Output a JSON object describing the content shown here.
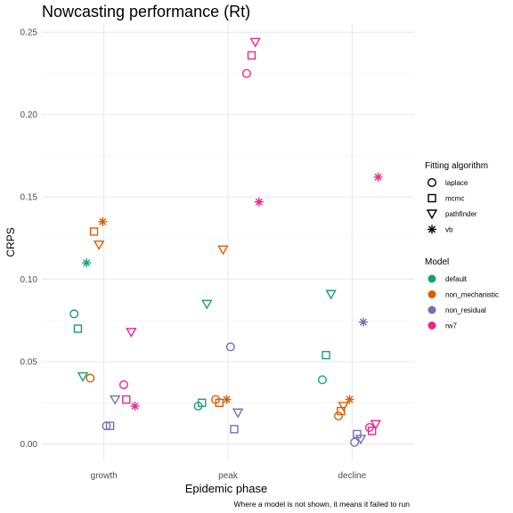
{
  "chart_data": {
    "type": "scatter",
    "title": "Nowcasting performance (Rt)",
    "xlabel": "Epidemic phase",
    "ylabel": "CRPS",
    "caption": "Where a model is not shown, it means it failed to run",
    "categories": [
      "growth",
      "peak",
      "decline"
    ],
    "ylim": [
      -0.01,
      0.255
    ],
    "yticks": [
      0.0,
      0.05,
      0.1,
      0.15,
      0.2,
      0.25
    ],
    "ytick_labels": [
      "0.00",
      "0.05",
      "0.10",
      "0.15",
      "0.20",
      "0.25"
    ],
    "grid": true,
    "legend_position": "right",
    "shape_legend": {
      "title": "Fitting algorithm",
      "entries": [
        {
          "label": "laplace",
          "shape": "circle"
        },
        {
          "label": "mcmc",
          "shape": "square"
        },
        {
          "label": "pathfinder",
          "shape": "triangle-down"
        },
        {
          "label": "vb",
          "shape": "asterisk"
        }
      ]
    },
    "color_legend": {
      "title": "Model",
      "entries": [
        {
          "label": "default",
          "color": "#1b9e77"
        },
        {
          "label": "non_mechanistic",
          "color": "#d95f02"
        },
        {
          "label": "non_residual",
          "color": "#7570b3"
        },
        {
          "label": "rw7",
          "color": "#e7298a"
        }
      ]
    },
    "points": [
      {
        "phase": "growth",
        "model": "default",
        "algorithm": "laplace",
        "offset": -0.24,
        "y": 0.079
      },
      {
        "phase": "growth",
        "model": "default",
        "algorithm": "mcmc",
        "offset": -0.21,
        "y": 0.07
      },
      {
        "phase": "growth",
        "model": "default",
        "algorithm": "pathfinder",
        "offset": -0.17,
        "y": 0.041
      },
      {
        "phase": "growth",
        "model": "default",
        "algorithm": "vb",
        "offset": -0.14,
        "y": 0.11
      },
      {
        "phase": "growth",
        "model": "non_mechanistic",
        "algorithm": "laplace",
        "offset": -0.11,
        "y": 0.04
      },
      {
        "phase": "growth",
        "model": "non_mechanistic",
        "algorithm": "mcmc",
        "offset": -0.08,
        "y": 0.129
      },
      {
        "phase": "growth",
        "model": "non_mechanistic",
        "algorithm": "pathfinder",
        "offset": -0.04,
        "y": 0.121
      },
      {
        "phase": "growth",
        "model": "non_mechanistic",
        "algorithm": "vb",
        "offset": -0.01,
        "y": 0.135
      },
      {
        "phase": "growth",
        "model": "non_residual",
        "algorithm": "laplace",
        "offset": 0.02,
        "y": 0.011
      },
      {
        "phase": "growth",
        "model": "non_residual",
        "algorithm": "mcmc",
        "offset": 0.05,
        "y": 0.011
      },
      {
        "phase": "growth",
        "model": "non_residual",
        "algorithm": "pathfinder",
        "offset": 0.09,
        "y": 0.027
      },
      {
        "phase": "growth",
        "model": "rw7",
        "algorithm": "laplace",
        "offset": 0.16,
        "y": 0.036
      },
      {
        "phase": "growth",
        "model": "rw7",
        "algorithm": "mcmc",
        "offset": 0.18,
        "y": 0.027
      },
      {
        "phase": "growth",
        "model": "rw7",
        "algorithm": "pathfinder",
        "offset": 0.22,
        "y": 0.068
      },
      {
        "phase": "growth",
        "model": "rw7",
        "algorithm": "vb",
        "offset": 0.25,
        "y": 0.023
      },
      {
        "phase": "peak",
        "model": "default",
        "algorithm": "laplace",
        "offset": -0.24,
        "y": 0.023
      },
      {
        "phase": "peak",
        "model": "default",
        "algorithm": "mcmc",
        "offset": -0.21,
        "y": 0.025
      },
      {
        "phase": "peak",
        "model": "default",
        "algorithm": "pathfinder",
        "offset": -0.17,
        "y": 0.085
      },
      {
        "phase": "peak",
        "model": "non_mechanistic",
        "algorithm": "laplace",
        "offset": -0.1,
        "y": 0.027
      },
      {
        "phase": "peak",
        "model": "non_mechanistic",
        "algorithm": "mcmc",
        "offset": -0.07,
        "y": 0.025
      },
      {
        "phase": "peak",
        "model": "non_mechanistic",
        "algorithm": "pathfinder",
        "offset": -0.04,
        "y": 0.118
      },
      {
        "phase": "peak",
        "model": "non_mechanistic",
        "algorithm": "vb",
        "offset": -0.01,
        "y": 0.027
      },
      {
        "phase": "peak",
        "model": "non_residual",
        "algorithm": "laplace",
        "offset": 0.02,
        "y": 0.059
      },
      {
        "phase": "peak",
        "model": "non_residual",
        "algorithm": "mcmc",
        "offset": 0.05,
        "y": 0.009
      },
      {
        "phase": "peak",
        "model": "non_residual",
        "algorithm": "pathfinder",
        "offset": 0.08,
        "y": 0.019
      },
      {
        "phase": "peak",
        "model": "rw7",
        "algorithm": "laplace",
        "offset": 0.15,
        "y": 0.225
      },
      {
        "phase": "peak",
        "model": "rw7",
        "algorithm": "mcmc",
        "offset": 0.19,
        "y": 0.236
      },
      {
        "phase": "peak",
        "model": "rw7",
        "algorithm": "pathfinder",
        "offset": 0.22,
        "y": 0.244
      },
      {
        "phase": "peak",
        "model": "rw7",
        "algorithm": "vb",
        "offset": 0.25,
        "y": 0.147
      },
      {
        "phase": "decline",
        "model": "default",
        "algorithm": "laplace",
        "offset": -0.24,
        "y": 0.039
      },
      {
        "phase": "decline",
        "model": "default",
        "algorithm": "mcmc",
        "offset": -0.21,
        "y": 0.054
      },
      {
        "phase": "decline",
        "model": "default",
        "algorithm": "pathfinder",
        "offset": -0.17,
        "y": 0.091
      },
      {
        "phase": "decline",
        "model": "non_mechanistic",
        "algorithm": "laplace",
        "offset": -0.11,
        "y": 0.017
      },
      {
        "phase": "decline",
        "model": "non_mechanistic",
        "algorithm": "mcmc",
        "offset": -0.09,
        "y": 0.02
      },
      {
        "phase": "decline",
        "model": "non_mechanistic",
        "algorithm": "pathfinder",
        "offset": -0.07,
        "y": 0.023
      },
      {
        "phase": "decline",
        "model": "non_mechanistic",
        "algorithm": "vb",
        "offset": -0.02,
        "y": 0.027
      },
      {
        "phase": "decline",
        "model": "non_residual",
        "algorithm": "laplace",
        "offset": 0.02,
        "y": 0.001
      },
      {
        "phase": "decline",
        "model": "non_residual",
        "algorithm": "mcmc",
        "offset": 0.04,
        "y": 0.006
      },
      {
        "phase": "decline",
        "model": "non_residual",
        "algorithm": "pathfinder",
        "offset": 0.07,
        "y": 0.003
      },
      {
        "phase": "decline",
        "model": "non_residual",
        "algorithm": "vb",
        "offset": 0.09,
        "y": 0.074
      },
      {
        "phase": "decline",
        "model": "rw7",
        "algorithm": "laplace",
        "offset": 0.14,
        "y": 0.01
      },
      {
        "phase": "decline",
        "model": "rw7",
        "algorithm": "mcmc",
        "offset": 0.16,
        "y": 0.008
      },
      {
        "phase": "decline",
        "model": "rw7",
        "algorithm": "pathfinder",
        "offset": 0.19,
        "y": 0.012
      },
      {
        "phase": "decline",
        "model": "rw7",
        "algorithm": "vb",
        "offset": 0.21,
        "y": 0.162
      }
    ]
  }
}
